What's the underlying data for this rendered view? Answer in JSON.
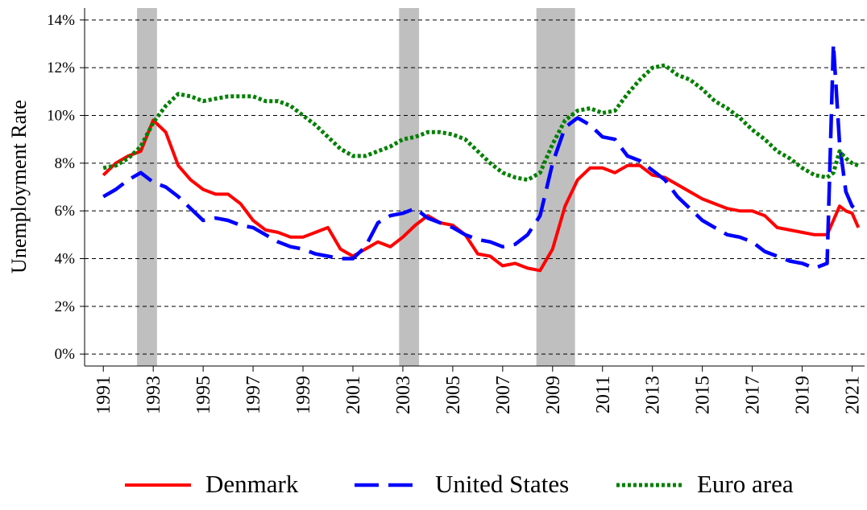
{
  "chart_data": {
    "type": "line",
    "y_label": "Unemployment Rate",
    "x": [
      1991.0,
      1991.5,
      1992.0,
      1992.5,
      1993.0,
      1993.5,
      1994.0,
      1994.5,
      1995.0,
      1995.5,
      1996.0,
      1996.5,
      1997.0,
      1997.5,
      1998.0,
      1998.5,
      1999.0,
      1999.5,
      2000.0,
      2000.5,
      2001.0,
      2001.5,
      2002.0,
      2002.5,
      2003.0,
      2003.5,
      2004.0,
      2004.5,
      2005.0,
      2005.5,
      2006.0,
      2006.5,
      2007.0,
      2007.5,
      2008.0,
      2008.5,
      2009.0,
      2009.5,
      2010.0,
      2010.5,
      2011.0,
      2011.5,
      2012.0,
      2012.5,
      2013.0,
      2013.5,
      2014.0,
      2014.5,
      2015.0,
      2015.5,
      2016.0,
      2016.5,
      2017.0,
      2017.5,
      2018.0,
      2018.5,
      2019.0,
      2019.5,
      2020.0,
      2020.25,
      2020.5,
      2020.75,
      2021.0,
      2021.25
    ],
    "series": [
      {
        "name": "Denmark",
        "color": "#ff0000",
        "dash": "solid",
        "values": [
          7.5,
          8.0,
          8.3,
          8.5,
          9.8,
          9.3,
          7.9,
          7.3,
          6.9,
          6.7,
          6.7,
          6.3,
          5.6,
          5.2,
          5.1,
          4.9,
          4.9,
          5.1,
          5.3,
          4.4,
          4.1,
          4.4,
          4.7,
          4.5,
          4.9,
          5.4,
          5.8,
          5.5,
          5.4,
          5.0,
          4.2,
          4.1,
          3.7,
          3.8,
          3.6,
          3.5,
          4.4,
          6.2,
          7.3,
          7.8,
          7.8,
          7.6,
          7.9,
          7.9,
          7.5,
          7.4,
          7.1,
          6.8,
          6.5,
          6.3,
          6.1,
          6.0,
          6.0,
          5.8,
          5.3,
          5.2,
          5.1,
          5.0,
          5.0,
          5.6,
          6.2,
          6.0,
          5.9,
          5.3
        ]
      },
      {
        "name": "United States",
        "color": "#0000ff",
        "dash": "dashed",
        "values": [
          6.6,
          6.9,
          7.3,
          7.6,
          7.2,
          7.0,
          6.6,
          6.1,
          5.6,
          5.7,
          5.6,
          5.4,
          5.3,
          5.0,
          4.7,
          4.5,
          4.4,
          4.2,
          4.1,
          4.0,
          4.0,
          4.5,
          5.5,
          5.8,
          5.9,
          6.1,
          5.7,
          5.5,
          5.3,
          5.0,
          4.8,
          4.7,
          4.5,
          4.6,
          5.0,
          5.8,
          8.0,
          9.5,
          9.9,
          9.6,
          9.1,
          9.0,
          8.3,
          8.1,
          7.7,
          7.3,
          6.6,
          6.1,
          5.6,
          5.3,
          5.0,
          4.9,
          4.7,
          4.3,
          4.1,
          3.9,
          3.8,
          3.6,
          3.8,
          13.0,
          8.8,
          6.8,
          6.2,
          6.0
        ]
      },
      {
        "name": "Euro area",
        "color": "#008000",
        "dash": "dotted",
        "values": [
          7.8,
          7.9,
          8.2,
          8.7,
          9.7,
          10.4,
          10.9,
          10.8,
          10.6,
          10.7,
          10.8,
          10.8,
          10.8,
          10.6,
          10.6,
          10.4,
          10.0,
          9.6,
          9.1,
          8.6,
          8.3,
          8.3,
          8.5,
          8.7,
          9.0,
          9.1,
          9.3,
          9.3,
          9.2,
          9.0,
          8.5,
          8.0,
          7.6,
          7.4,
          7.3,
          7.6,
          8.8,
          9.8,
          10.2,
          10.3,
          10.1,
          10.2,
          10.9,
          11.5,
          12.0,
          12.1,
          11.7,
          11.5,
          11.1,
          10.6,
          10.3,
          9.9,
          9.4,
          9.0,
          8.5,
          8.2,
          7.8,
          7.5,
          7.4,
          7.6,
          8.5,
          8.2,
          8.0,
          7.9
        ]
      }
    ],
    "shaded_periods": [
      [
        1992.35,
        1993.15
      ],
      [
        2002.85,
        2003.65
      ],
      [
        2008.35,
        2009.9
      ]
    ],
    "shade_color": "#bfbfbf",
    "xlim": [
      1990.25,
      2021.5
    ],
    "xticks": [
      1991,
      1993,
      1995,
      1997,
      1999,
      2001,
      2003,
      2005,
      2007,
      2009,
      2011,
      2013,
      2015,
      2017,
      2019,
      2021
    ],
    "ylim": [
      -0.5,
      14.5
    ],
    "yticks": [
      {
        "value": 0,
        "label": "0%"
      },
      {
        "value": 2,
        "label": "2%"
      },
      {
        "value": 4,
        "label": "4%"
      },
      {
        "value": 6,
        "label": "6%"
      },
      {
        "value": 8,
        "label": "8%"
      },
      {
        "value": 10,
        "label": "10%"
      },
      {
        "value": 12,
        "label": "12%"
      },
      {
        "value": 14,
        "label": "14%"
      }
    ],
    "grid": true,
    "legend": "bottom"
  }
}
